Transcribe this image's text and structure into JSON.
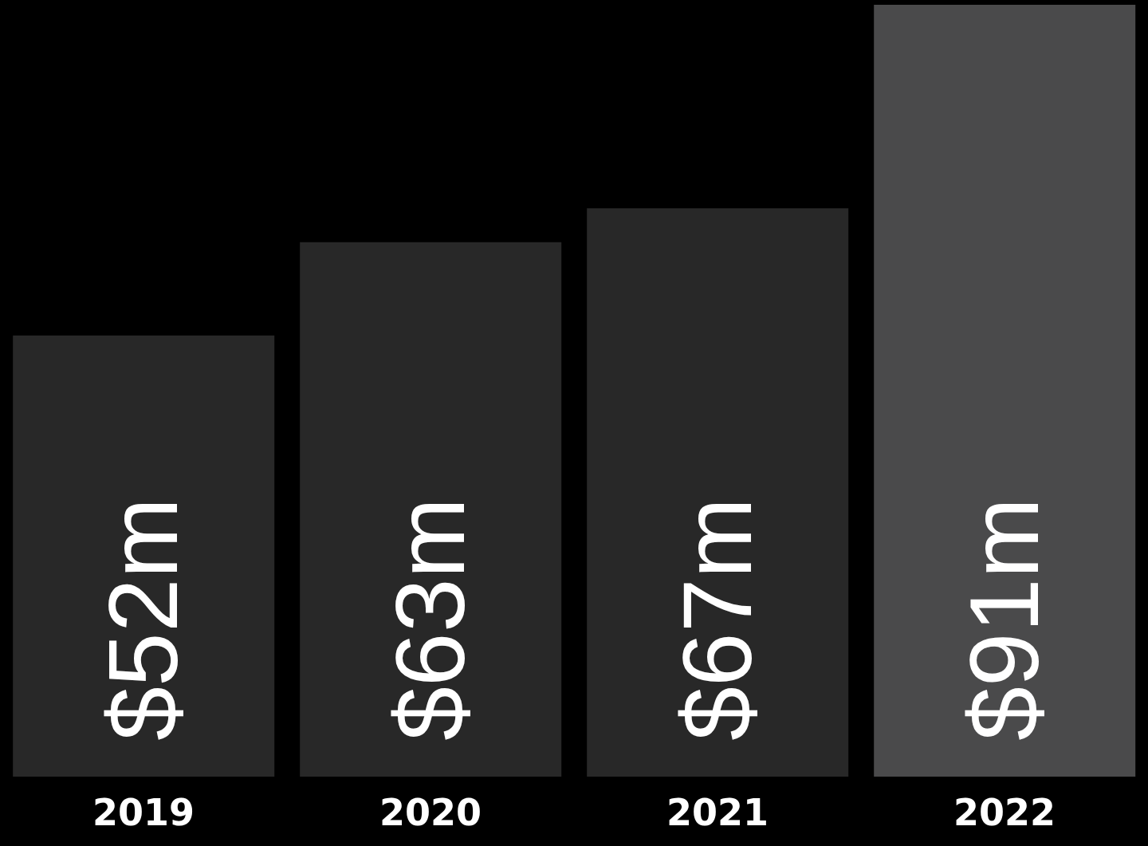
{
  "chart_data": {
    "type": "bar",
    "categories": [
      "2019",
      "2020",
      "2021",
      "2022"
    ],
    "values": [
      52,
      63,
      67,
      91
    ],
    "colors": [
      "#282828",
      "#282828",
      "#282828",
      "#4a4a4b"
    ],
    "value_labels": [
      "$52m",
      "$63m",
      "$67m",
      "$91m"
    ],
    "grid": false,
    "legend": false
  }
}
